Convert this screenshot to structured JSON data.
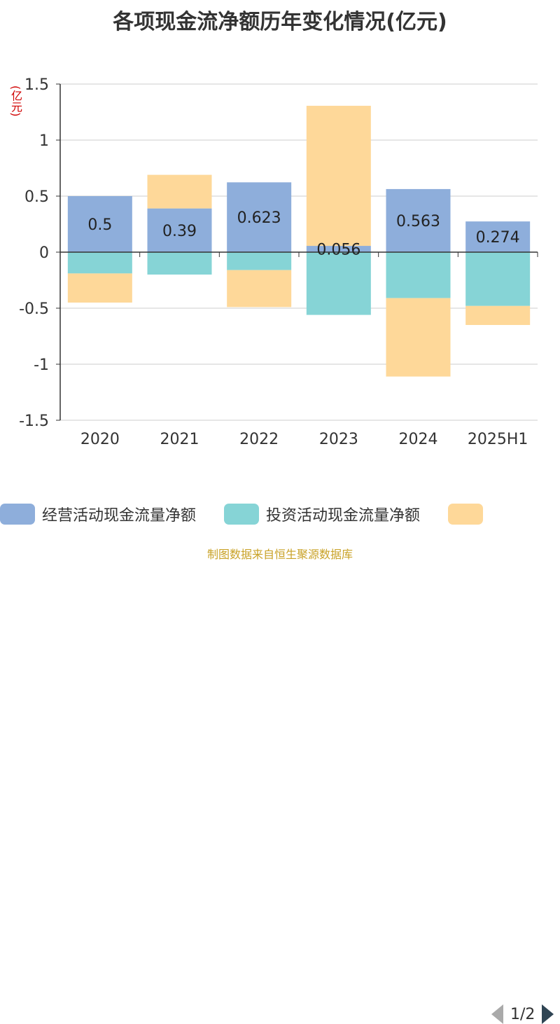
{
  "title": "各项现金流净额历年变化情况(亿元)",
  "unit_label": "(亿元)",
  "source": "制图数据来自恒生聚源数据库",
  "legend": {
    "items": [
      {
        "label": "经营活动现金流量净额",
        "color": "#8eaedb"
      },
      {
        "label": "投资活动现金流量净额",
        "color": "#86d4d6"
      },
      {
        "label": "",
        "color": "#fed899"
      }
    ],
    "page": "1/2"
  },
  "chart_data": {
    "type": "bar",
    "stacked": true,
    "categories": [
      "2020",
      "2021",
      "2022",
      "2023",
      "2024",
      "2025H1"
    ],
    "ylim": [
      -1.5,
      1.5
    ],
    "yticks": [
      1.5,
      1,
      0.5,
      0,
      -0.5,
      -1,
      -1.5
    ],
    "ytick_labels": [
      "1.5",
      "1",
      "0.5",
      "0",
      "-0.5",
      "-1",
      "-1.5"
    ],
    "grid": true,
    "series": [
      {
        "name": "经营活动现金流量净额",
        "color": "#8eaedb",
        "values": [
          0.5,
          0.39,
          0.623,
          0.056,
          0.563,
          0.274
        ],
        "labels": [
          "0.5",
          "0.39",
          "0.623",
          "0.056",
          "0.563",
          "0.274"
        ]
      },
      {
        "name": "投资活动现金流量净额",
        "color": "#86d4d6",
        "values": [
          -0.19,
          -0.2,
          -0.16,
          -0.56,
          -0.41,
          -0.48
        ]
      },
      {
        "color": "#fed899",
        "values": [
          -0.26,
          0.3,
          -0.33,
          1.25,
          -0.7,
          -0.17
        ]
      }
    ]
  }
}
